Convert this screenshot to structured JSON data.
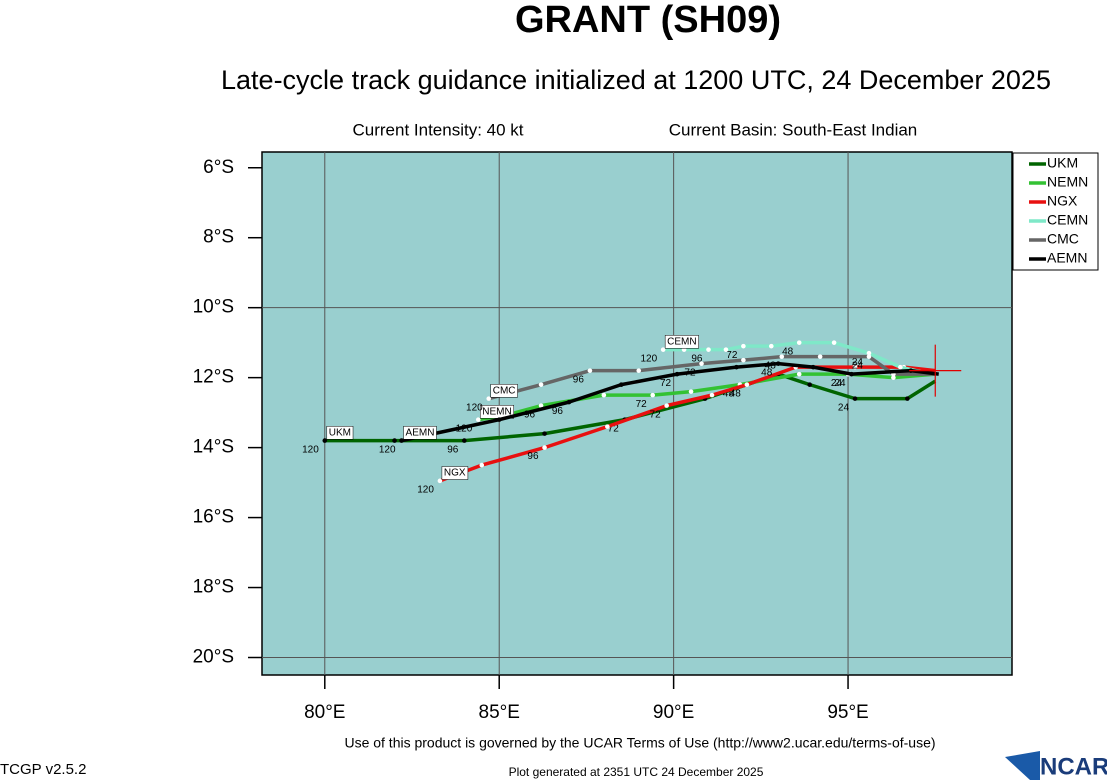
{
  "chart_data": {
    "type": "track",
    "title": "GRANT (SH09)",
    "subtitle": "Late-cycle track guidance initialized at 1200 UTC, 24 December 2025",
    "intensity": "Current Intensity: 40 kt",
    "basin": "Current Basin: South-East Indian",
    "background": "#99cfcf",
    "grid": true,
    "legend": "outside right",
    "xlim": [
      78.2,
      99.7
    ],
    "ylim": [
      -20.5,
      -5.55
    ],
    "xticks": [
      {
        "value": 80,
        "label": "80°E"
      },
      {
        "value": 85,
        "label": "85°E"
      },
      {
        "value": 90,
        "label": "90°E"
      },
      {
        "value": 95,
        "label": "95°E"
      }
    ],
    "yticks": [
      {
        "value": -6,
        "label": "6°S"
      },
      {
        "value": -8,
        "label": "8°S"
      },
      {
        "value": -10,
        "label": "10°S"
      },
      {
        "value": -12,
        "label": "12°S"
      },
      {
        "value": -14,
        "label": "14°S"
      },
      {
        "value": -16,
        "label": "16°S"
      },
      {
        "value": -18,
        "label": "18°S"
      },
      {
        "value": -20,
        "label": "20°S"
      }
    ],
    "current_position": {
      "x": 97.5,
      "y": -11.8,
      "color": "#e00000"
    },
    "series": [
      {
        "name": "UKM",
        "color": "#006400",
        "marker_color": "#000000",
        "x": [
          97.5,
          96.7,
          95.2,
          93.9,
          93.0,
          90.9,
          88.6,
          86.3,
          84.0,
          82.0,
          80.0
        ],
        "y": [
          -12.1,
          -12.6,
          -12.6,
          -12.2,
          -11.9,
          -12.6,
          -13.2,
          -13.6,
          -13.8,
          -13.8,
          -13.8
        ],
        "taus": [
          null,
          null,
          "24",
          null,
          null,
          null,
          "72",
          null,
          "96",
          null,
          "120"
        ]
      },
      {
        "name": "NEMN",
        "color": "#33c233",
        "marker_color": "#ffffff",
        "x": [
          97.5,
          96.3,
          95.0,
          93.6,
          91.9,
          90.5,
          89.4,
          88.0,
          86.2,
          85.1,
          84.4
        ],
        "y": [
          -11.9,
          -12.0,
          -11.9,
          -11.9,
          -12.2,
          -12.4,
          -12.5,
          -12.5,
          -12.8,
          -13.1,
          -13.2
        ],
        "taus": [
          null,
          null,
          "24",
          null,
          "48",
          null,
          "72",
          null,
          "96",
          null,
          "120"
        ]
      },
      {
        "name": "NGX",
        "color": "#e81010",
        "marker_color": "#ffffff",
        "x": [
          97.5,
          96.6,
          95.2,
          93.5,
          92.1,
          91.1,
          89.8,
          88.1,
          86.3,
          84.5,
          83.3
        ],
        "y": [
          -11.8,
          -11.7,
          -11.7,
          -11.7,
          -12.2,
          -12.5,
          -12.8,
          -13.4,
          -14.0,
          -14.5,
          -14.95
        ],
        "taus": [
          null,
          null,
          null,
          null,
          "48",
          null,
          "72",
          null,
          "96",
          null,
          "120"
        ]
      },
      {
        "name": "CEMN",
        "color": "#7fe8c8",
        "marker_color": "#ffffff",
        "x": [
          97.4,
          96.5,
          95.6,
          94.6,
          93.6,
          92.8,
          92.0,
          91.5,
          91.0,
          90.3,
          89.7
        ],
        "y": [
          -11.9,
          -11.7,
          -11.3,
          -11.0,
          -11.0,
          -11.1,
          -11.1,
          -11.2,
          -11.2,
          -11.2,
          -11.2
        ],
        "taus": [
          null,
          null,
          "24",
          null,
          "48",
          null,
          "72",
          null,
          "96",
          null,
          "120"
        ]
      },
      {
        "name": "CMC",
        "color": "#666666",
        "marker_color": "#ffffff",
        "x": [
          97.5,
          96.3,
          95.6,
          94.2,
          93.1,
          92.0,
          90.8,
          89.0,
          87.6,
          86.2,
          84.7
        ],
        "y": [
          -11.9,
          -11.9,
          -11.4,
          -11.4,
          -11.4,
          -11.5,
          -11.6,
          -11.8,
          -11.8,
          -12.2,
          -12.6
        ],
        "taus": [
          null,
          null,
          "24",
          null,
          "48",
          null,
          "72",
          null,
          "96",
          null,
          "120"
        ]
      },
      {
        "name": "AEMN",
        "color": "#000000",
        "marker_color": "#000000",
        "x": [
          97.6,
          96.8,
          95.1,
          94.0,
          93.0,
          91.8,
          90.1,
          88.5,
          87.0,
          85.0,
          82.2
        ],
        "y": [
          -11.9,
          -11.8,
          -11.9,
          -11.7,
          -11.6,
          -11.7,
          -11.9,
          -12.2,
          -12.7,
          -13.2,
          -13.8
        ],
        "taus": [
          null,
          null,
          "24",
          null,
          "48",
          null,
          "72",
          null,
          "96",
          null,
          "120"
        ]
      }
    ]
  },
  "footer": {
    "terms": "Use of this product is governed by the UCAR Terms of Use (http://www2.ucar.edu/terms-of-use)",
    "version": "TCGP v2.5.2",
    "generated": "Plot generated at 2351 UTC  24 December 2025",
    "logo": "NCAR"
  }
}
